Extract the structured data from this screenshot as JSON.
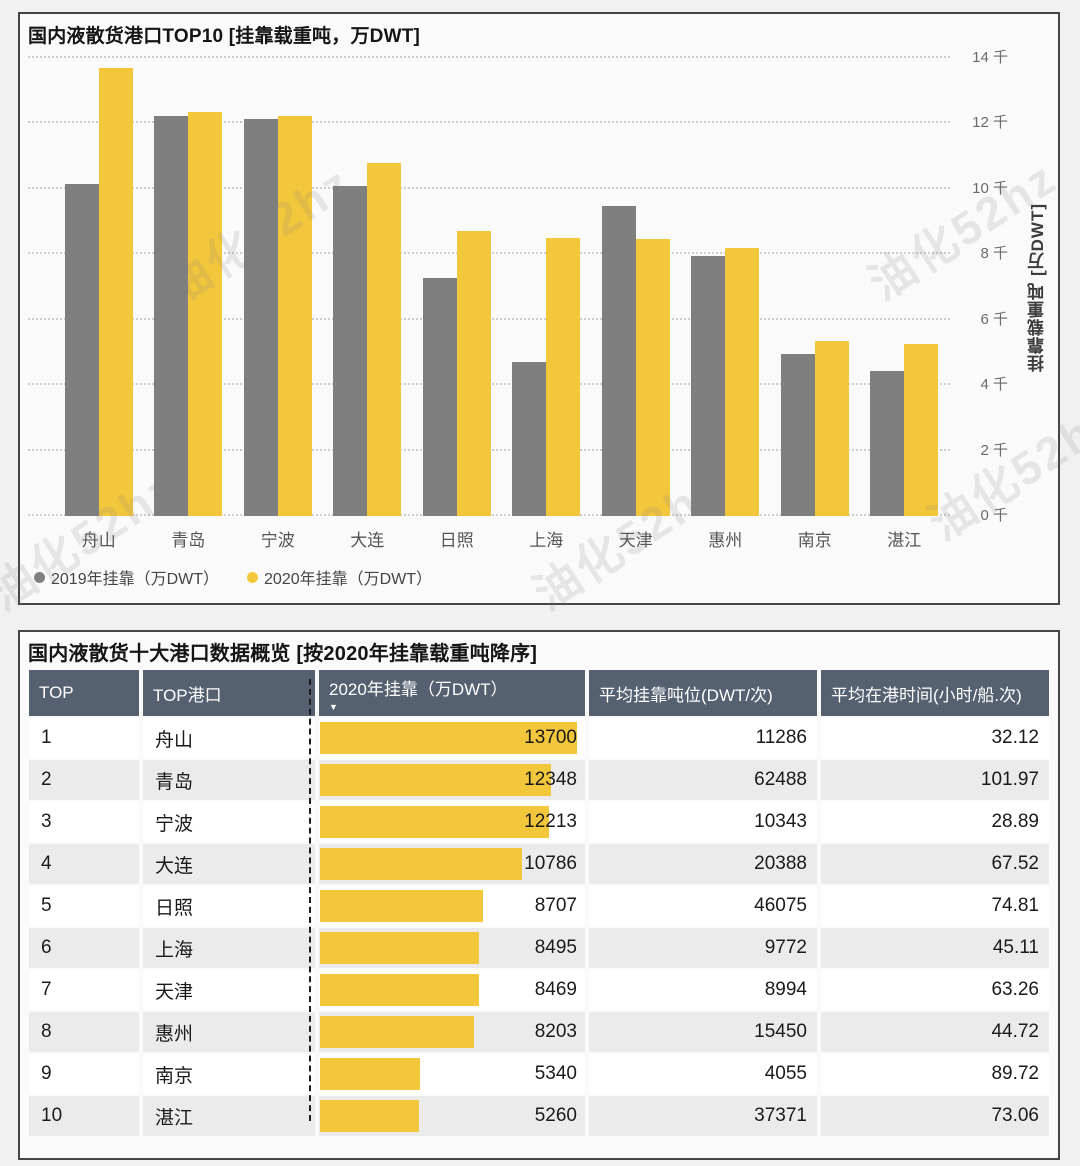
{
  "watermark_text": "油化52hz",
  "chart_panel": {
    "title": "国内液散货港口TOP10 [挂靠载重吨，万DWT]",
    "y_axis_title": "挂靠载重吨 [万DWT]"
  },
  "chart_data": {
    "type": "bar",
    "title": "国内液散货港口TOP10 [挂靠载重吨，万DWT]",
    "categories": [
      "舟山",
      "青岛",
      "宁波",
      "大连",
      "日照",
      "上海",
      "天津",
      "惠州",
      "南京",
      "湛江"
    ],
    "series": [
      {
        "name": "2019年挂靠（万DWT）",
        "color": "#7F7F7F",
        "values": [
          10160,
          12240,
          12150,
          10100,
          7280,
          4715,
          9465,
          7950,
          4955,
          4440
        ]
      },
      {
        "name": "2020年挂靠（万DWT）",
        "color": "#F3C73C",
        "values": [
          13700,
          12348,
          12213,
          10786,
          8707,
          8495,
          8469,
          8203,
          5340,
          5260
        ]
      }
    ],
    "xlabel": "",
    "ylabel": "挂靠载重吨 [万DWT]",
    "ylim": [
      0,
      14000
    ],
    "yticks": [
      {
        "value": 0,
        "label": "0 千"
      },
      {
        "value": 2000,
        "label": "2 千"
      },
      {
        "value": 4000,
        "label": "4 千"
      },
      {
        "value": 6000,
        "label": "6 千"
      },
      {
        "value": 8000,
        "label": "8 千"
      },
      {
        "value": 10000,
        "label": "10 千"
      },
      {
        "value": 12000,
        "label": "12 千"
      },
      {
        "value": 14000,
        "label": "14 千"
      }
    ],
    "grid": "horizontal-dotted",
    "legend_position": "bottom-left"
  },
  "table": {
    "title": "国内液散货十大港口数据概览 [按2020年挂靠载重吨降序]",
    "sort_indicator": "▼",
    "databar_max": 13700,
    "columns": [
      {
        "label": "TOP",
        "sorted": false
      },
      {
        "label": "TOP港口",
        "sorted": false
      },
      {
        "label": "2020年挂靠（万DWT）",
        "sorted": true
      },
      {
        "label": "平均挂靠吨位(DWT/次)",
        "sorted": false
      },
      {
        "label": "平均在港时间(小时/船.次)",
        "sorted": false
      }
    ],
    "rows": [
      {
        "top": "1",
        "port": "舟山",
        "v2020": 13700,
        "avg_dwt": "11286",
        "avg_hours": "32.12"
      },
      {
        "top": "2",
        "port": "青岛",
        "v2020": 12348,
        "avg_dwt": "62488",
        "avg_hours": "101.97"
      },
      {
        "top": "3",
        "port": "宁波",
        "v2020": 12213,
        "avg_dwt": "10343",
        "avg_hours": "28.89"
      },
      {
        "top": "4",
        "port": "大连",
        "v2020": 10786,
        "avg_dwt": "20388",
        "avg_hours": "67.52"
      },
      {
        "top": "5",
        "port": "日照",
        "v2020": 8707,
        "avg_dwt": "46075",
        "avg_hours": "74.81"
      },
      {
        "top": "6",
        "port": "上海",
        "v2020": 8495,
        "avg_dwt": "9772",
        "avg_hours": "45.11"
      },
      {
        "top": "7",
        "port": "天津",
        "v2020": 8469,
        "avg_dwt": "8994",
        "avg_hours": "63.26"
      },
      {
        "top": "8",
        "port": "惠州",
        "v2020": 8203,
        "avg_dwt": "15450",
        "avg_hours": "44.72"
      },
      {
        "top": "9",
        "port": "南京",
        "v2020": 5340,
        "avg_dwt": "4055",
        "avg_hours": "89.72"
      },
      {
        "top": "10",
        "port": "湛江",
        "v2020": 5260,
        "avg_dwt": "37371",
        "avg_hours": "73.06"
      }
    ]
  }
}
